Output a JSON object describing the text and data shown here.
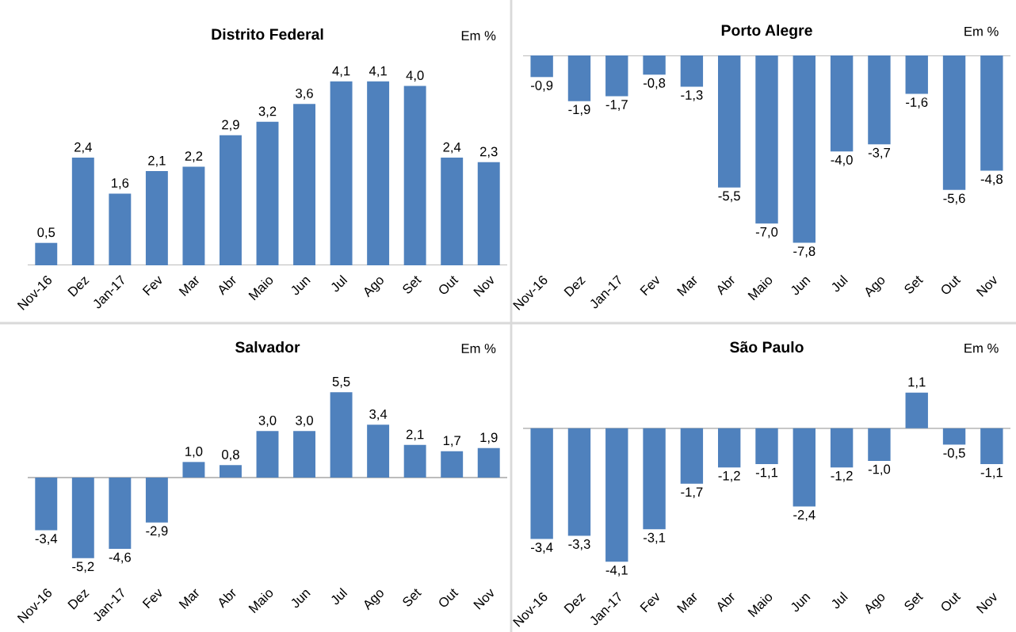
{
  "chart_data": [
    {
      "type": "bar",
      "title": "Distrito Federal",
      "annotations": [
        "Em %"
      ],
      "categories": [
        "Nov-16",
        "Dez",
        "Jan-17",
        "Fev",
        "Mar",
        "Abr",
        "Maio",
        "Jun",
        "Jul",
        "Ago",
        "Set",
        "Out",
        "Nov"
      ],
      "color": "#4f81bd",
      "tick_labels": "x",
      "values": [
        0.5,
        2.4,
        1.6,
        2.1,
        2.2,
        2.9,
        3.2,
        3.6,
        4.1,
        4.1,
        4.0,
        2.4,
        2.3
      ],
      "value_labels": [
        "0,5",
        "2,4",
        "1,6",
        "2,1",
        "2,2",
        "2,9",
        "3,2",
        "3,6",
        "4,1",
        "4,1",
        "4,0",
        "2,4",
        "2,3"
      ]
    },
    {
      "type": "bar",
      "title": "Porto Alegre",
      "annotations": [
        "Em %"
      ],
      "categories": [
        "Nov-16",
        "Dez",
        "Jan-17",
        "Fev",
        "Mar",
        "Abr",
        "Maio",
        "Jun",
        "Jul",
        "Ago",
        "Set",
        "Out",
        "Nov"
      ],
      "color": "#4f81bd",
      "tick_labels": "x",
      "values": [
        -0.9,
        -1.9,
        -1.7,
        -0.8,
        -1.3,
        -5.5,
        -7.0,
        -7.8,
        -4.0,
        -3.7,
        -1.6,
        -5.6,
        -4.8
      ],
      "value_labels": [
        "-0,9",
        "-1,9",
        "-1,7",
        "-0,8",
        "-1,3",
        "-5,5",
        "-7,0",
        "-7,8",
        "-4,0",
        "-3,7",
        "-1,6",
        "-5,6",
        "-4,8"
      ]
    },
    {
      "type": "bar",
      "title": "Salvador",
      "annotations": [
        "Em %"
      ],
      "categories": [
        "Nov-16",
        "Dez",
        "Jan-17",
        "Fev",
        "Mar",
        "Abr",
        "Maio",
        "Jun",
        "Jul",
        "Ago",
        "Set",
        "Out",
        "Nov"
      ],
      "color": "#4f81bd",
      "tick_labels": "x",
      "values": [
        -3.4,
        -5.2,
        -4.6,
        -2.9,
        1.0,
        0.8,
        3.0,
        3.0,
        5.5,
        3.4,
        2.1,
        1.7,
        1.9
      ],
      "value_labels": [
        "-3,4",
        "-5,2",
        "-4,6",
        "-2,9",
        "1,0",
        "0,8",
        "3,0",
        "3,0",
        "5,5",
        "3,4",
        "2,1",
        "1,7",
        "1,9"
      ]
    },
    {
      "type": "bar",
      "title": "São Paulo",
      "annotations": [
        "Em %"
      ],
      "categories": [
        "Nov-16",
        "Dez",
        "Jan-17",
        "Fev",
        "Mar",
        "Abr",
        "Maio",
        "Jun",
        "Jul",
        "Ago",
        "Set",
        "Out",
        "Nov"
      ],
      "color": "#4f81bd",
      "tick_labels": "x",
      "values": [
        -3.4,
        -3.3,
        -4.1,
        -3.1,
        -1.7,
        -1.2,
        -1.1,
        -2.4,
        -1.2,
        -1.0,
        1.1,
        -0.5,
        -1.1
      ],
      "value_labels": [
        "-3,4",
        "-3,3",
        "-4,1",
        "-3,1",
        "-1,7",
        "-1,2",
        "-1,1",
        "-2,4",
        "-1,2",
        "-1,0",
        "1,1",
        "-0,5",
        "-1,1"
      ]
    }
  ]
}
